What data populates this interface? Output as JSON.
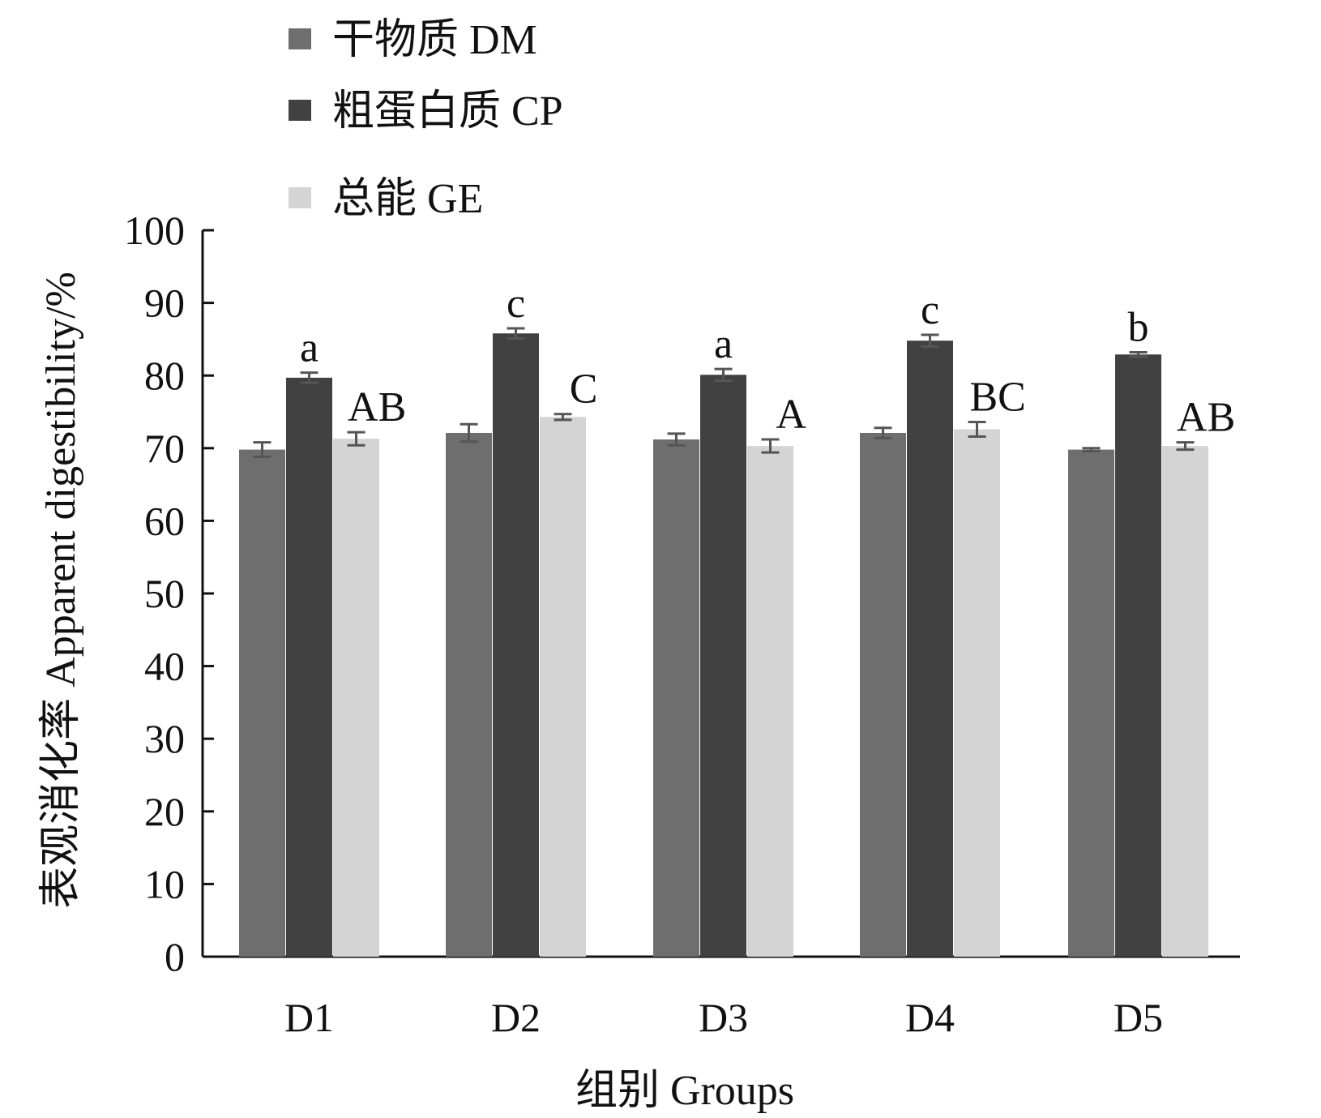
{
  "chart_data": {
    "type": "bar",
    "xlabel": "组别 Groups",
    "ylabel": "表观消化率 Apparent digestibility/%",
    "ylim": [
      0,
      100
    ],
    "yticks": [
      0,
      10,
      20,
      30,
      40,
      50,
      60,
      70,
      80,
      90,
      100
    ],
    "categories": [
      "D1",
      "D2",
      "D3",
      "D4",
      "D5"
    ],
    "legend_position": "top-left",
    "series": [
      {
        "name": "干物质 DM",
        "color": "#6e6e6e",
        "values": [
          69.8,
          72.1,
          71.2,
          72.1,
          69.8
        ],
        "errors": [
          1.0,
          1.2,
          0.8,
          0.7,
          0.2
        ],
        "sig_labels": [
          "",
          "",
          "",
          "",
          ""
        ]
      },
      {
        "name": "粗蛋白质 CP",
        "color": "#414141",
        "values": [
          79.7,
          85.8,
          80.1,
          84.8,
          82.9
        ],
        "errors": [
          0.7,
          0.7,
          0.8,
          0.8,
          0.3
        ],
        "sig_labels": [
          "a",
          "c",
          "a",
          "c",
          "b"
        ]
      },
      {
        "name": "总能 GE",
        "color": "#d4d4d4",
        "values": [
          71.3,
          74.3,
          70.3,
          72.6,
          70.3
        ],
        "errors": [
          0.9,
          0.4,
          0.9,
          1.0,
          0.5
        ],
        "sig_labels": [
          "AB",
          "C",
          "A",
          "BC",
          "AB"
        ]
      }
    ]
  }
}
